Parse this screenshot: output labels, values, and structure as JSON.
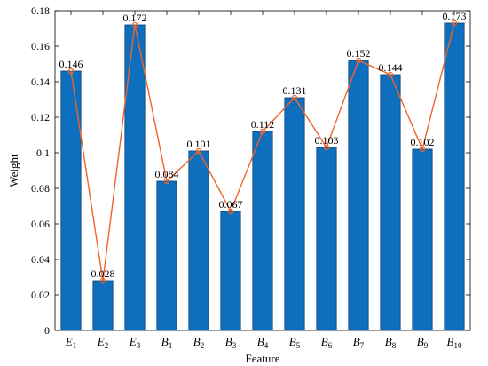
{
  "chart_data": {
    "type": "bar",
    "title": "",
    "xlabel": "Feature",
    "ylabel": "Weight",
    "ylim": [
      0,
      0.18
    ],
    "yticks": [
      "0",
      "0.02",
      "0.04",
      "0.06",
      "0.08",
      "0.1",
      "0.12",
      "0.14",
      "0.16",
      "0.18"
    ],
    "categories": [
      {
        "base": "E",
        "sub": "1"
      },
      {
        "base": "E",
        "sub": "2"
      },
      {
        "base": "E",
        "sub": "3"
      },
      {
        "base": "B",
        "sub": "1"
      },
      {
        "base": "B",
        "sub": "2"
      },
      {
        "base": "B",
        "sub": "3"
      },
      {
        "base": "B",
        "sub": "4"
      },
      {
        "base": "B",
        "sub": "5"
      },
      {
        "base": "B",
        "sub": "6"
      },
      {
        "base": "B",
        "sub": "7"
      },
      {
        "base": "B",
        "sub": "8"
      },
      {
        "base": "B",
        "sub": "9"
      },
      {
        "base": "B",
        "sub": "10"
      }
    ],
    "values": [
      0.146,
      0.028,
      0.172,
      0.084,
      0.101,
      0.067,
      0.112,
      0.131,
      0.103,
      0.152,
      0.144,
      0.102,
      0.173
    ],
    "value_labels": [
      "0.146",
      "0.028",
      "0.172",
      "0.084",
      "0.101",
      "0.067",
      "0.112",
      "0.131",
      "0.103",
      "0.152",
      "0.144",
      "0.102",
      "0.173"
    ],
    "overlay_line": true,
    "grid": false,
    "colors": {
      "bar_fill": "#0f6fbf",
      "bar_stroke": "#0a3f6e",
      "line": "#f0642a",
      "axis": "#000000"
    }
  }
}
